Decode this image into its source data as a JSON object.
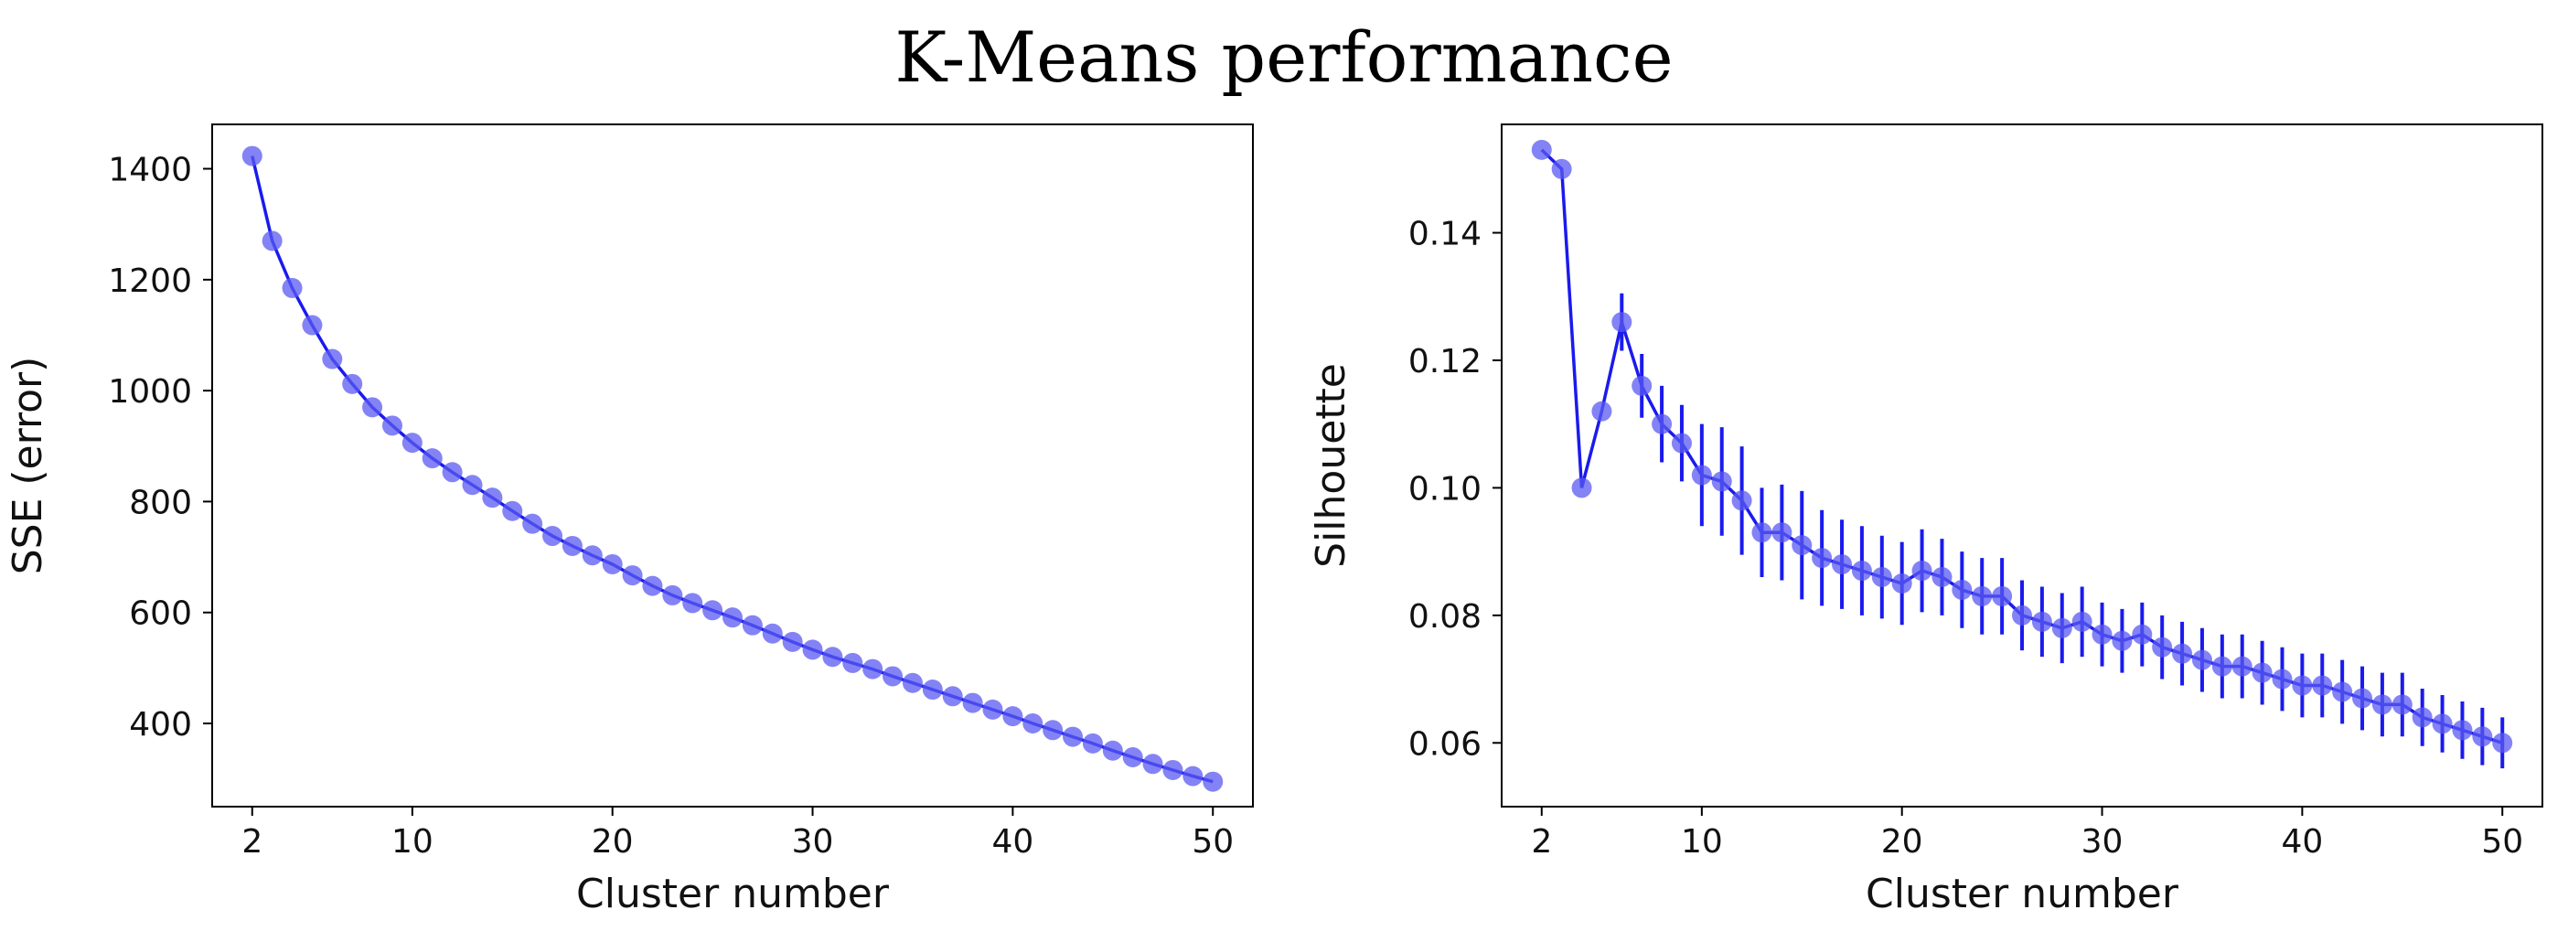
{
  "title": "K-Means performance",
  "colors": {
    "series": "#1a1aee",
    "marker": "#5a5af2",
    "axis": "#000000"
  },
  "chart_data": [
    {
      "type": "line",
      "xlabel": "Cluster number",
      "ylabel": "SSE (error)",
      "xlim": [
        0,
        52
      ],
      "ylim": [
        250,
        1480
      ],
      "xticks": [
        2,
        10,
        20,
        30,
        40,
        50
      ],
      "yticks": [
        400,
        600,
        800,
        1000,
        1200,
        1400
      ],
      "ytick_labels": [
        "400",
        "600",
        "800",
        "1000",
        "1200",
        "1400"
      ],
      "x": [
        2,
        3,
        4,
        5,
        6,
        7,
        8,
        9,
        10,
        11,
        12,
        13,
        14,
        15,
        16,
        17,
        18,
        19,
        20,
        21,
        22,
        23,
        24,
        25,
        26,
        27,
        28,
        29,
        30,
        31,
        32,
        33,
        34,
        35,
        36,
        37,
        38,
        39,
        40,
        41,
        42,
        43,
        44,
        45,
        46,
        47,
        48,
        49,
        50
      ],
      "y": [
        1423,
        1270,
        1185,
        1118,
        1057,
        1012,
        970,
        937,
        906,
        878,
        853,
        830,
        807,
        783,
        760,
        738,
        720,
        703,
        687,
        667,
        648,
        631,
        617,
        604,
        591,
        577,
        562,
        547,
        533,
        520,
        509,
        498,
        485,
        473,
        461,
        449,
        437,
        425,
        413,
        400,
        388,
        376,
        364,
        351,
        339,
        327,
        316,
        305,
        295
      ],
      "error": null
    },
    {
      "type": "line",
      "xlabel": "Cluster number",
      "ylabel": "Silhouette",
      "xlim": [
        0,
        52
      ],
      "ylim": [
        0.05,
        0.157
      ],
      "xticks": [
        2,
        10,
        20,
        30,
        40,
        50
      ],
      "yticks": [
        0.06,
        0.08,
        0.1,
        0.12,
        0.14
      ],
      "ytick_labels": [
        "0.06",
        "0.08",
        "0.10",
        "0.12",
        "0.14"
      ],
      "x": [
        2,
        3,
        4,
        5,
        6,
        7,
        8,
        9,
        10,
        11,
        12,
        13,
        14,
        15,
        16,
        17,
        18,
        19,
        20,
        21,
        22,
        23,
        24,
        25,
        26,
        27,
        28,
        29,
        30,
        31,
        32,
        33,
        34,
        35,
        36,
        37,
        38,
        39,
        40,
        41,
        42,
        43,
        44,
        45,
        46,
        47,
        48,
        49,
        50
      ],
      "y": [
        0.153,
        0.15,
        0.1,
        0.112,
        0.126,
        0.116,
        0.11,
        0.107,
        0.102,
        0.101,
        0.098,
        0.093,
        0.093,
        0.091,
        0.089,
        0.088,
        0.087,
        0.086,
        0.085,
        0.087,
        0.086,
        0.084,
        0.083,
        0.083,
        0.08,
        0.079,
        0.078,
        0.079,
        0.077,
        0.076,
        0.077,
        0.075,
        0.074,
        0.073,
        0.072,
        0.072,
        0.071,
        0.07,
        0.069,
        0.069,
        0.068,
        0.067,
        0.066,
        0.066,
        0.064,
        0.063,
        0.062,
        0.061,
        0.06
      ],
      "error": [
        0,
        0,
        0,
        0,
        0.0045,
        0.005,
        0.006,
        0.006,
        0.008,
        0.0085,
        0.0085,
        0.007,
        0.0075,
        0.0085,
        0.0075,
        0.007,
        0.007,
        0.0065,
        0.0065,
        0.0065,
        0.006,
        0.006,
        0.006,
        0.006,
        0.0055,
        0.0055,
        0.0055,
        0.0055,
        0.005,
        0.005,
        0.005,
        0.005,
        0.005,
        0.005,
        0.005,
        0.005,
        0.005,
        0.005,
        0.005,
        0.005,
        0.005,
        0.005,
        0.005,
        0.005,
        0.0045,
        0.0045,
        0.0045,
        0.0045,
        0.004
      ]
    }
  ]
}
